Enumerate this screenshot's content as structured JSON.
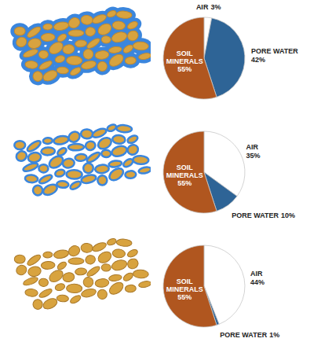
{
  "chart_data": [
    {
      "type": "pie",
      "categories": [
        "AIR",
        "PORE WATER",
        "SOIL MINERALS"
      ],
      "values": [
        3,
        42,
        55
      ],
      "value_labels": [
        "3%",
        "42%",
        "55%"
      ],
      "colors": [
        "#ffffff",
        "#2e6496",
        "#b0561f"
      ],
      "data_labels": true
    },
    {
      "type": "pie",
      "categories": [
        "AIR",
        "PORE WATER",
        "SOIL MINERALS"
      ],
      "values": [
        35,
        10,
        55
      ],
      "value_labels": [
        "35%",
        "10%",
        "55%"
      ],
      "colors": [
        "#ffffff",
        "#2e6496",
        "#b0561f"
      ],
      "data_labels": true
    },
    {
      "type": "pie",
      "categories": [
        "AIR",
        "PORE WATER",
        "SOIL MINERALS"
      ],
      "values": [
        44,
        1,
        55
      ],
      "value_labels": [
        "44%",
        "1%",
        "55%"
      ],
      "colors": [
        "#ffffff",
        "#2e6496",
        "#b0561f"
      ],
      "data_labels": true
    }
  ]
}
